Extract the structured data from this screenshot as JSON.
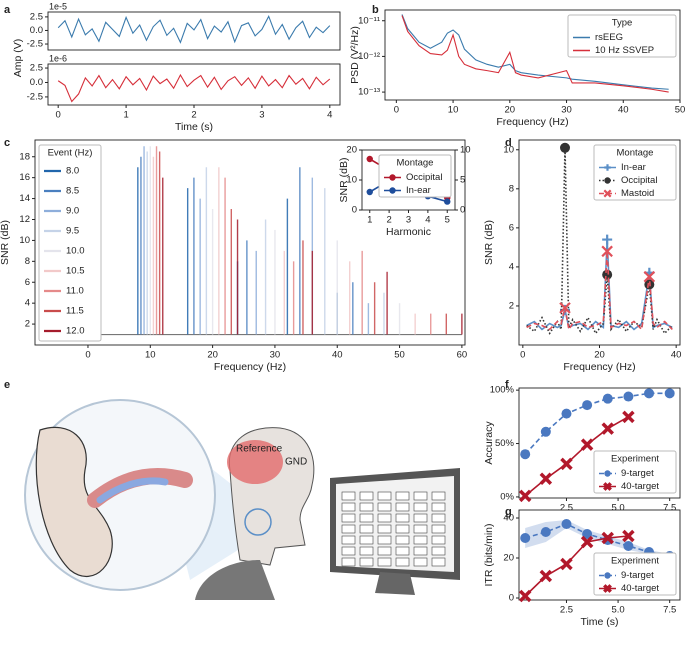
{
  "chart_data": [
    {
      "type": "line",
      "label": "a",
      "ylabel": "Amp (V)",
      "offset_label": "1e-5",
      "xlim": [
        -0.15,
        4.15
      ],
      "ylim": [
        -3.6,
        3.4
      ],
      "yticks": [
        -2.5,
        {
          "value": 0,
          "label": "0.0"
        },
        2.5
      ],
      "x": [
        0,
        0.1,
        0.2,
        0.3,
        0.4,
        0.5,
        0.6,
        0.7,
        0.8,
        0.9,
        1.0,
        1.1,
        1.2,
        1.3,
        1.4,
        1.5,
        1.6,
        1.7,
        1.8,
        1.9,
        2.0,
        2.1,
        2.2,
        2.3,
        2.4,
        2.5,
        2.6,
        2.7,
        2.8,
        2.9,
        3.0,
        3.1,
        3.2,
        3.3,
        3.4,
        3.5,
        3.6,
        3.7,
        3.8,
        3.9,
        4.0
      ],
      "series": [
        {
          "color": "#3b7bad",
          "values": [
            0.5,
            1.8,
            -1.2,
            2.1,
            -0.8,
            0.3,
            -2.0,
            1.5,
            0.2,
            -1.1,
            2.4,
            -0.5,
            1.0,
            -1.8,
            0.7,
            1.9,
            -0.9,
            0.4,
            -2.2,
            1.3,
            0.1,
            2.0,
            -1.5,
            0.8,
            -0.3,
            1.6,
            -2.1,
            0.9,
            1.4,
            -1.0,
            0.2,
            2.6,
            -0.7,
            1.1,
            -1.6,
            0.5,
            1.7,
            -1.3,
            0.6,
            -0.4,
            0.9
          ]
        }
      ]
    },
    {
      "type": "line",
      "xlabel": "Time (s)",
      "offset_label": "1e-6",
      "xlim": [
        -0.15,
        4.15
      ],
      "ylim": [
        -3.9,
        3.2
      ],
      "xticks": [
        0,
        1,
        2,
        3,
        4
      ],
      "yticks": [
        -2.5,
        {
          "value": 0,
          "label": "0.0"
        },
        2.5
      ],
      "x": [
        0,
        0.1,
        0.2,
        0.3,
        0.4,
        0.5,
        0.6,
        0.7,
        0.8,
        0.9,
        1.0,
        1.1,
        1.2,
        1.3,
        1.4,
        1.5,
        1.6,
        1.7,
        1.8,
        1.9,
        2.0,
        2.1,
        2.2,
        2.3,
        2.4,
        2.5,
        2.6,
        2.7,
        2.8,
        2.9,
        3.0,
        3.1,
        3.2,
        3.3,
        3.4,
        3.5,
        3.6,
        3.7,
        3.8,
        3.9,
        4.0
      ],
      "series": [
        {
          "color": "#d62f3a",
          "values": [
            0.3,
            -0.5,
            -3.3,
            -2.0,
            0.8,
            -0.6,
            1.2,
            -0.9,
            0.5,
            -1.1,
            1.0,
            -0.4,
            0.7,
            -1.3,
            1.1,
            -0.2,
            0.6,
            -1.0,
            1.3,
            -0.7,
            0.4,
            1.2,
            -0.8,
            0.9,
            -1.2,
            0.3,
            1.0,
            -0.5,
            0.8,
            -1.0,
            1.1,
            -0.6,
            0.5,
            -0.9,
            1.2,
            -0.3,
            0.7,
            -1.1,
            0.9,
            -0.4,
            0.6
          ]
        }
      ]
    },
    {
      "type": "line",
      "label": "b",
      "xlabel": "Frequency (Hz)",
      "ylabel": "PSD (V²/Hz)",
      "ylog": true,
      "xlim": [
        -2,
        50
      ],
      "ylim": [
        6e-14,
        2e-11
      ],
      "xticks": [
        0,
        10,
        20,
        30,
        40,
        50
      ],
      "yticks": [
        {
          "value": 1e-13,
          "label": "10⁻¹³"
        },
        {
          "value": 1e-12,
          "label": "10⁻¹²"
        },
        {
          "value": 1e-11,
          "label": "10⁻¹¹"
        }
      ],
      "legend": "upper right",
      "legend_title": "Type",
      "x": [
        1,
        2,
        4,
        6,
        8,
        9,
        10,
        11,
        12,
        14,
        16,
        18,
        20,
        21,
        22,
        25,
        30,
        31,
        35,
        40,
        45,
        48
      ],
      "series": [
        {
          "name": "rsEEG",
          "color": "#3b7bad",
          "values": [
            1.5e-11,
            6e-12,
            2.5e-12,
            1.7e-12,
            2.5e-12,
            4.5e-12,
            5.5e-12,
            4e-12,
            1.6e-12,
            8e-13,
            6e-13,
            5e-13,
            6e-13,
            4e-13,
            3.5e-13,
            3e-13,
            2.5e-13,
            2.3e-13,
            2e-13,
            1.6e-13,
            1.3e-13,
            1.2e-13
          ]
        },
        {
          "name": "10 Hz SSVEP",
          "color": "#d62f3a",
          "values": [
            1.4e-11,
            5e-12,
            2e-12,
            1.2e-12,
            1.1e-12,
            1.5e-12,
            4e-12,
            1e-12,
            6e-13,
            4.5e-13,
            4e-13,
            3.5e-13,
            1.3e-12,
            3.5e-13,
            3e-13,
            2.5e-13,
            4e-13,
            1.8e-13,
            1.8e-13,
            1.5e-13,
            1.2e-13,
            1e-13
          ]
        }
      ]
    },
    {
      "type": "spike",
      "label": "c",
      "xlabel": "Frequency (Hz)",
      "ylabel": "SNR (dB)",
      "baseline": 1,
      "xlim": [
        -8.5,
        60.5
      ],
      "ylim": [
        0,
        19.6
      ],
      "xticks": [
        0,
        10,
        20,
        30,
        40,
        50,
        60
      ],
      "yticks": [
        2,
        4,
        6,
        8,
        10,
        12,
        14,
        16,
        18
      ],
      "legend": "upper left",
      "legend_title": "Event (Hz)",
      "series": [
        {
          "name": "8.0",
          "color": "#2166ac",
          "x": [
            8,
            16,
            24,
            32,
            40
          ],
          "values": [
            17,
            15,
            8,
            14,
            5
          ]
        },
        {
          "name": "8.5",
          "color": "#4a7fbf",
          "x": [
            8.5,
            17,
            25.5,
            34,
            42.5
          ],
          "values": [
            18,
            16,
            10,
            17,
            6
          ]
        },
        {
          "name": "9.0",
          "color": "#8eaedb",
          "x": [
            9,
            18,
            27,
            36,
            45
          ],
          "values": [
            19,
            14,
            9,
            16,
            4
          ]
        },
        {
          "name": "9.5",
          "color": "#c5d3e8",
          "x": [
            9.5,
            19,
            28.5,
            38,
            47.5
          ],
          "values": [
            18.5,
            17,
            12,
            15,
            5
          ]
        },
        {
          "name": "10.0",
          "color": "#e4e4ec",
          "x": [
            10,
            20,
            30,
            40,
            50
          ],
          "values": [
            19,
            13,
            11,
            10,
            4
          ]
        },
        {
          "name": "10.5",
          "color": "#f2c9c9",
          "x": [
            10.5,
            21,
            31.5,
            42,
            52.5
          ],
          "values": [
            18,
            17,
            9,
            8,
            3
          ]
        },
        {
          "name": "11.0",
          "color": "#e58a8a",
          "x": [
            11,
            22,
            33,
            44,
            55
          ],
          "values": [
            19,
            16,
            8,
            9,
            3
          ]
        },
        {
          "name": "11.5",
          "color": "#c94c4c",
          "x": [
            11.5,
            23,
            34.5,
            46,
            57.5
          ],
          "values": [
            18.5,
            13,
            10,
            6,
            3
          ]
        },
        {
          "name": "12.0",
          "color": "#a51c2c",
          "x": [
            12,
            24,
            36,
            48,
            60
          ],
          "values": [
            16,
            12,
            9,
            7,
            3
          ]
        }
      ]
    },
    {
      "type": "line",
      "xlabel": "Harmonic",
      "ylabel": "SNR (dB)",
      "xlim": [
        0.6,
        5.4
      ],
      "ylim": [
        0,
        20
      ],
      "y2lim": [
        0,
        10
      ],
      "xticks": [
        1,
        2,
        3,
        4,
        5
      ],
      "yticks": [
        0,
        10,
        20
      ],
      "y2ticks": [
        0,
        5,
        10
      ],
      "legend": "upper right",
      "legend_title": "Montage",
      "x": [
        1,
        2,
        3,
        4,
        5
      ],
      "series": [
        {
          "name": "Occipital",
          "color": "#b2182b",
          "marker": "circle",
          "values": [
            17,
            13.2,
            7.2,
            6.5,
            4
          ]
        },
        {
          "name": "In-ear",
          "color": "#1f4e9c",
          "marker": "circle",
          "axis": "y2",
          "values": [
            3,
            4.9,
            3.1,
            2.3,
            1.4
          ]
        }
      ]
    },
    {
      "type": "line",
      "label": "d",
      "xlabel": "Frequency (Hz)",
      "ylabel": "SNR (dB)",
      "xlim": [
        -1,
        41
      ],
      "ylim": [
        0,
        10.5
      ],
      "xticks": [
        0,
        20,
        40
      ],
      "yticks": [
        2,
        4,
        6,
        8,
        10
      ],
      "legend": "upper right",
      "legend_title": "Montage",
      "x": [
        1,
        3,
        5,
        7,
        9,
        10,
        11,
        12,
        13,
        15,
        17,
        19,
        21,
        22,
        23,
        25,
        27,
        29,
        31,
        33,
        34,
        35,
        37,
        39
      ],
      "peak_x": [
        11,
        22,
        33
      ],
      "series": [
        {
          "name": "In-ear",
          "color": "#5b8fc7",
          "marker": "plus",
          "values": [
            1,
            1.2,
            0.8,
            1.1,
            0.9,
            1.0,
            1.8,
            0.9,
            1.0,
            1.1,
            0.8,
            1.2,
            0.9,
            5.4,
            1.0,
            0.9,
            1.2,
            0.8,
            1.1,
            3.7,
            0.9,
            1.0,
            1.1,
            0.9
          ],
          "peak_values": [
            1.8,
            5.4,
            3.7
          ]
        },
        {
          "name": "Occipital",
          "color": "#333333",
          "style": "dotted",
          "marker": "circle",
          "values": [
            1,
            0.7,
            1.4,
            0.6,
            1.2,
            0.8,
            10.1,
            0.9,
            1.3,
            0.7,
            1.4,
            0.6,
            1.1,
            3.6,
            0.8,
            1.3,
            0.7,
            1.2,
            0.9,
            3.1,
            0.8,
            1.3,
            0.6,
            1.0
          ],
          "peak_values": [
            10.1,
            3.6,
            3.1
          ]
        },
        {
          "name": "Mastoid",
          "color": "#e0505a",
          "style": "dashed",
          "marker": "cross",
          "values": [
            0.9,
            1.1,
            1.0,
            0.8,
            1.2,
            1.1,
            1.9,
            0.8,
            1.1,
            1.2,
            0.9,
            1.0,
            1.2,
            4.8,
            0.9,
            1.1,
            1.0,
            1.2,
            0.8,
            3.5,
            1.1,
            0.9,
            1.2,
            0.8
          ],
          "peak_values": [
            1.9,
            4.8,
            3.5
          ]
        }
      ]
    },
    {
      "type": "line",
      "label": "f",
      "ylabel": "Accuracy",
      "xlim": [
        0.2,
        8
      ],
      "ylim": [
        -1,
        102
      ],
      "xticks": [
        2.5,
        {
          "value": 5,
          "label": "5.0"
        },
        7.5
      ],
      "yticks": [
        {
          "value": 0,
          "label": "0%"
        },
        {
          "value": 50,
          "label": "50%"
        },
        {
          "value": 100,
          "label": "100%"
        }
      ],
      "legend": "lower right",
      "legend_title": "Experiment",
      "series": [
        {
          "name": "9-target",
          "color": "#4a78c0",
          "marker": "circle",
          "style": "dashed",
          "x": [
            0.5,
            1.5,
            2.5,
            3.5,
            4.5,
            5.5,
            6.5,
            7.5
          ],
          "values": [
            40,
            61,
            78,
            86,
            92,
            94,
            97,
            97
          ]
        },
        {
          "name": "40-target",
          "color": "#b2182b",
          "marker": "xcross",
          "x": [
            0.5,
            1.5,
            2.5,
            3.5,
            4.5,
            5.5
          ],
          "values": [
            1,
            17,
            31,
            49,
            64,
            75
          ]
        }
      ]
    },
    {
      "type": "line",
      "label": "g",
      "xlabel": "Time (s)",
      "ylabel": "ITR (bits/min)",
      "xlim": [
        0.2,
        8
      ],
      "ylim": [
        -1,
        44
      ],
      "xticks": [
        2.5,
        {
          "value": 5,
          "label": "5.0"
        },
        7.5
      ],
      "yticks": [
        0,
        20,
        40
      ],
      "legend": "lower right",
      "legend_title": "Experiment",
      "series": [
        {
          "name": "9-target",
          "color": "#4a78c0",
          "marker": "circle",
          "style": "dashed",
          "x": [
            0.5,
            1.5,
            2.5,
            3.5,
            4.5,
            5.5,
            6.5,
            7.5
          ],
          "values": [
            30,
            33,
            37,
            32,
            29,
            26,
            23,
            21
          ],
          "errors": [
            5,
            5,
            2,
            2,
            2,
            2,
            1,
            1
          ]
        },
        {
          "name": "40-target",
          "color": "#b2182b",
          "marker": "xcross",
          "x": [
            0.5,
            1.5,
            2.5,
            3.5,
            4.5,
            5.5
          ],
          "values": [
            1,
            11,
            17,
            28,
            30,
            31
          ]
        }
      ]
    }
  ],
  "illustration": {
    "label": "e",
    "reference": "Reference",
    "gnd": "GND"
  }
}
